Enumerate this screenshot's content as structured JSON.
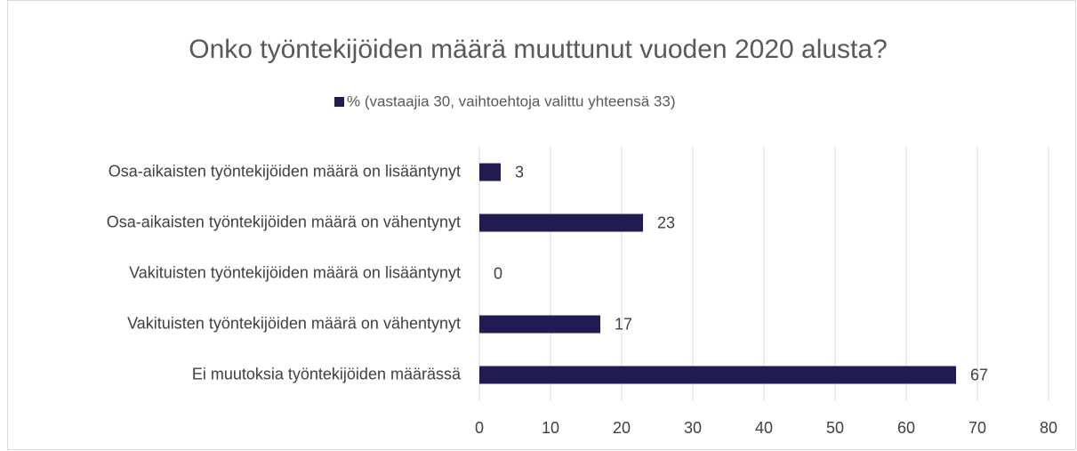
{
  "chart_data": {
    "type": "bar",
    "orientation": "horizontal",
    "title": "Onko työntekijöiden määrä muuttunut vuoden 2020 alusta?",
    "categories": [
      "Osa-aikaisten työntekijöiden määrä on lisääntynyt",
      "Osa-aikaisten työntekijöiden määrä on vähentynyt",
      "Vakituisten työntekijöiden määrä on lisääntynyt",
      "Vakituisten työntekijöiden määrä on vähentynyt",
      "Ei muutoksia työntekijöiden määrässä"
    ],
    "series": [
      {
        "name": "% (vastaajia 30, vaihtoehtoja valittu yhteensä 33)",
        "color": "#201c52",
        "values": [
          3,
          23,
          0,
          17,
          67
        ]
      }
    ],
    "xlim": [
      0,
      80
    ],
    "xticks": [
      0,
      10,
      20,
      30,
      40,
      50,
      60,
      70,
      80
    ],
    "grid": true,
    "legend": "top"
  }
}
